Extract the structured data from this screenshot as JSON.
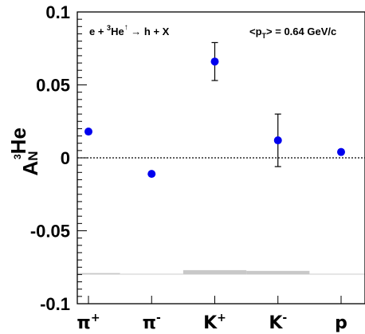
{
  "chart_data": {
    "type": "scatter",
    "title": "",
    "ylabel": "A_N^3He",
    "ylabel_parts": {
      "main": "A",
      "sub": "N",
      "sup_pre": "3",
      "sup": "He"
    },
    "ylim": [
      -0.1,
      0.1
    ],
    "yticks": [
      "-0.1",
      "-0.05",
      "0",
      "0.05",
      "0.1"
    ],
    "ytick_values": [
      -0.1,
      -0.05,
      0,
      0.05,
      0.1
    ],
    "categories": [
      {
        "base": "π",
        "sup": "+"
      },
      {
        "base": "π",
        "sup": "-"
      },
      {
        "base": "K",
        "sup": "+"
      },
      {
        "base": "K",
        "sup": "-"
      },
      {
        "base": "p",
        "sup": ""
      }
    ],
    "values": [
      0.018,
      -0.011,
      0.066,
      0.012,
      0.004
    ],
    "stat_errors": [
      0.0,
      0.0,
      0.013,
      0.018,
      0.0
    ],
    "systematic_errors": [
      0.001,
      0.0005,
      0.003,
      0.0025,
      0.0005
    ],
    "sys_band_baseline": -0.08,
    "zero_line": true,
    "annotations": {
      "reaction": {
        "prefix": "e + ",
        "sup1": "3",
        "mid": "He",
        "sup2": "↑",
        "suffix": " → h + X"
      },
      "pt": {
        "prefix": "<p",
        "sub": "T",
        "suffix": "> = 0.64 GeV/c"
      }
    },
    "colors": {
      "points": "#0000ee",
      "band": "#c8c8c8"
    }
  }
}
